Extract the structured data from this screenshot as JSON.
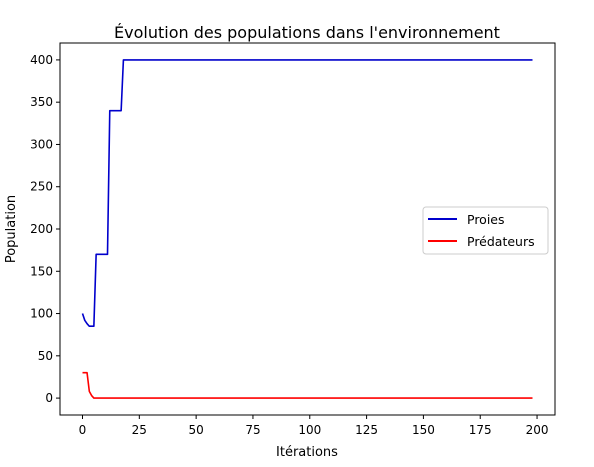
{
  "chart_data": {
    "type": "line",
    "title": "Évolution des populations dans l'environnement",
    "xlabel": "Itérations",
    "ylabel": "Population",
    "xlim": [
      -9.9,
      207.9
    ],
    "ylim": [
      -20,
      420
    ],
    "xticks": [
      0,
      25,
      50,
      75,
      100,
      125,
      150,
      175,
      200
    ],
    "yticks": [
      0,
      50,
      100,
      150,
      200,
      250,
      300,
      350,
      400
    ],
    "grid": false,
    "legend_position": "center-right",
    "series": [
      {
        "name": "Proies",
        "color": "#0000cc",
        "x": [
          0,
          1,
          2,
          3,
          4,
          5,
          6,
          7,
          8,
          9,
          10,
          11,
          12,
          13,
          14,
          15,
          16,
          17,
          18,
          198
        ],
        "y": [
          100,
          92,
          88,
          85,
          85,
          85,
          170,
          170,
          170,
          170,
          170,
          170,
          340,
          340,
          340,
          340,
          340,
          340,
          400,
          400
        ]
      },
      {
        "name": "Prédateurs",
        "color": "#ff0000",
        "x": [
          0,
          1,
          2,
          3,
          4,
          5,
          198
        ],
        "y": [
          30,
          30,
          30,
          8,
          3,
          0,
          0
        ]
      }
    ]
  }
}
